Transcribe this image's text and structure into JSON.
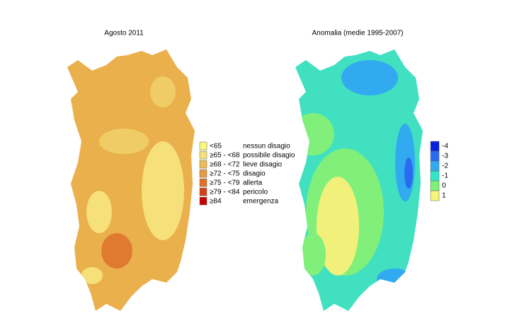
{
  "left_map": {
    "title": "Agosto 2011",
    "legend": [
      {
        "range": "<65",
        "label": "nessun disagio",
        "color": "#fafa78"
      },
      {
        "range": "≥65 - <68",
        "label": "possibile disagio",
        "color": "#f5e07a"
      },
      {
        "range": "≥68 - <72",
        "label": "lieve disagio",
        "color": "#eebb55"
      },
      {
        "range": "≥72 - <75",
        "label": "disagio",
        "color": "#e89a40"
      },
      {
        "range": "≥75 - <79",
        "label": "allerta",
        "color": "#e07028"
      },
      {
        "range": "≥79 - <84",
        "label": "pericolo",
        "color": "#d44018"
      },
      {
        "range": "≥84",
        "label": "emergenza",
        "color": "#c80000"
      }
    ]
  },
  "right_map": {
    "title": "Anomalia (medie 1995-2007)",
    "legend": [
      {
        "value": -4,
        "color": "#0a1ee0"
      },
      {
        "value": -3,
        "color": "#2a6cf0"
      },
      {
        "value": -2,
        "color": "#32aaf0"
      },
      {
        "value": -1,
        "color": "#32e6c8"
      },
      {
        "value": 0,
        "color": "#80f07a"
      },
      {
        "value": 1,
        "color": "#f5f57a"
      }
    ]
  }
}
